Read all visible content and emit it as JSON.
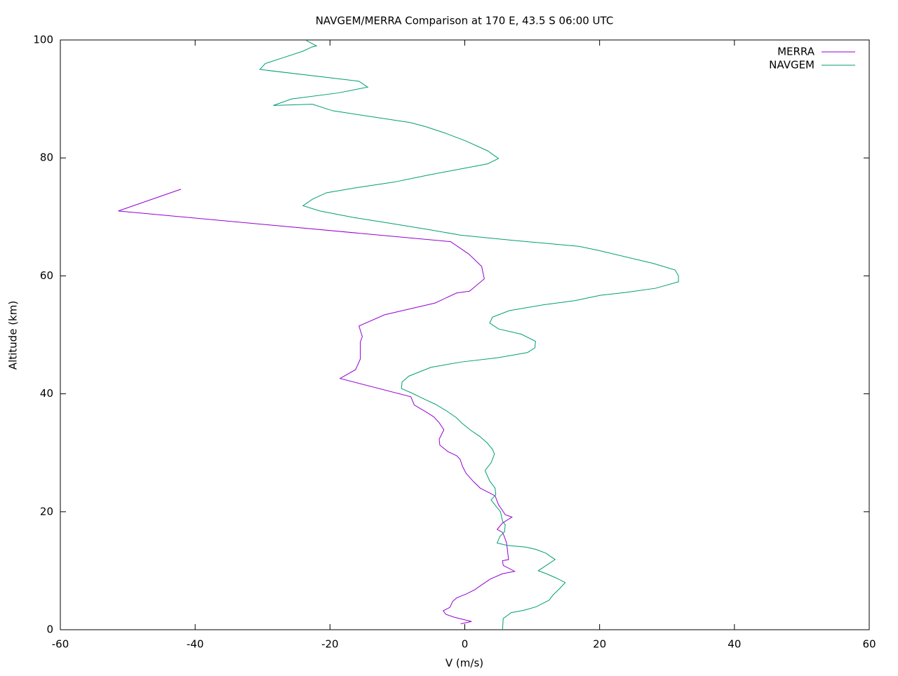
{
  "chart_data": {
    "type": "line",
    "title": "NAVGEM/MERRA Comparison at 170 E, 43.5 S  06:00 UTC",
    "x_label": "V (m/s)",
    "y_label": "Altitude (km)",
    "xlim": [
      -60,
      60
    ],
    "xticks": [
      -60,
      -40,
      -20,
      0,
      20,
      40,
      60
    ],
    "ylim": [
      0,
      100
    ],
    "yticks": [
      0,
      20,
      40,
      60,
      80,
      100
    ],
    "legend": "top right",
    "series": [
      {
        "name": "MERRA",
        "color": "#9400d3",
        "x": [
          -0.6,
          1.0,
          -1.5,
          -2.8,
          -3.2,
          -2.2,
          -1.8,
          -1.2,
          0.3,
          1.5,
          2.5,
          3.8,
          5.6,
          7.4,
          5.7,
          5.6,
          6.5,
          6.4,
          6.3,
          6.2,
          5.9,
          5.6,
          4.8,
          5.6,
          7.0,
          6.0,
          5.6,
          5.0,
          4.5,
          3.5,
          2.3,
          1.3,
          0.2,
          -0.3,
          -0.7,
          -1.2,
          -2.5,
          -3.7,
          -3.8,
          -3.1,
          -3.8,
          -4.6,
          -6.0,
          -7.5,
          -8.0,
          -18.5,
          -16.2,
          -15.5,
          -15.5,
          -15.2,
          -15.7,
          -11.9,
          -4.4,
          -1.2,
          0.7,
          2.9,
          2.5,
          0.6,
          -2.1,
          -51.4,
          -42.1
        ],
        "values": [
          1.0,
          1.4,
          2.1,
          2.6,
          3.2,
          3.8,
          4.8,
          5.4,
          6.1,
          6.8,
          7.6,
          8.6,
          9.5,
          9.9,
          10.9,
          11.7,
          11.9,
          12.8,
          13.8,
          14.7,
          15.7,
          16.5,
          17.0,
          18.1,
          19.1,
          19.5,
          20.2,
          21.2,
          22.7,
          23.3,
          24.0,
          25.1,
          26.5,
          27.6,
          28.9,
          29.5,
          30.2,
          31.3,
          32.3,
          33.9,
          35.1,
          36.1,
          37.1,
          38.1,
          39.5,
          42.6,
          44.1,
          45.9,
          48.8,
          49.7,
          51.5,
          53.4,
          55.4,
          57.1,
          57.4,
          59.5,
          61.6,
          63.7,
          65.8,
          71.0,
          74.7
        ]
      },
      {
        "name": "NAVGEM",
        "color": "#009e73",
        "x": [
          5.6,
          5.7,
          6.9,
          8.8,
          10.6,
          12.5,
          13.1,
          14.0,
          14.9,
          13.5,
          12.1,
          10.9,
          13.4,
          12.0,
          10.6,
          9.1,
          6.3,
          4.8,
          5.2,
          5.9,
          6.0,
          5.6,
          5.3,
          4.6,
          3.9,
          4.6,
          4.5,
          3.7,
          3.0,
          3.9,
          4.4,
          4.1,
          3.3,
          2.2,
          0.9,
          -0.4,
          -1.3,
          -2.7,
          -4.3,
          -6.0,
          -7.8,
          -9.4,
          -9.3,
          -8.3,
          -5.0,
          -0.5,
          4.8,
          9.3,
          10.4,
          10.5,
          8.4,
          5.0,
          3.7,
          4.1,
          6.6,
          11.7,
          16.3,
          20.1,
          23.9,
          28.3,
          31.7,
          31.7,
          31.2,
          28.0,
          19.9,
          17.0,
          7.4,
          -0.6,
          -5.6,
          -11.5,
          -16.5,
          -21.5,
          -24.0,
          -22.6,
          -20.5,
          -15.8,
          -10.5,
          -5.4,
          3.4,
          5.0,
          3.4,
          0.1,
          -2.9,
          -5.8,
          -8.1,
          -19.6,
          -22.6,
          -28.4,
          -25.7,
          -18.9,
          -14.4,
          -15.7,
          -30.4,
          -29.6,
          -27.2,
          -24.0,
          -22.7,
          -22.0,
          -23.5
        ],
        "values": [
          0.0,
          1.9,
          2.9,
          3.3,
          3.9,
          5.0,
          5.9,
          6.9,
          8.0,
          8.8,
          9.5,
          10.0,
          11.9,
          13.0,
          13.6,
          14.0,
          14.3,
          14.7,
          15.8,
          16.6,
          17.8,
          18.4,
          20.0,
          21.0,
          22.0,
          22.9,
          24.0,
          25.2,
          27.0,
          28.3,
          29.8,
          30.6,
          31.7,
          32.8,
          33.8,
          35.0,
          36.0,
          37.1,
          38.2,
          39.1,
          40.1,
          40.9,
          42.0,
          43.0,
          44.5,
          45.4,
          46.1,
          47.0,
          47.8,
          48.9,
          50.1,
          51.0,
          52.0,
          53.0,
          54.1,
          55.1,
          55.8,
          56.7,
          57.2,
          57.9,
          59.0,
          60.0,
          61.0,
          62.1,
          64.3,
          65.0,
          66.0,
          66.9,
          67.9,
          69.0,
          69.9,
          71.0,
          71.9,
          73.0,
          74.1,
          75.0,
          75.9,
          77.1,
          79.0,
          79.9,
          81.2,
          82.9,
          84.2,
          85.3,
          86.0,
          88.0,
          89.1,
          88.9,
          90.0,
          91.0,
          92.0,
          93.0,
          95.0,
          96.0,
          96.9,
          98.1,
          98.8,
          99.0,
          99.9
        ]
      }
    ]
  }
}
